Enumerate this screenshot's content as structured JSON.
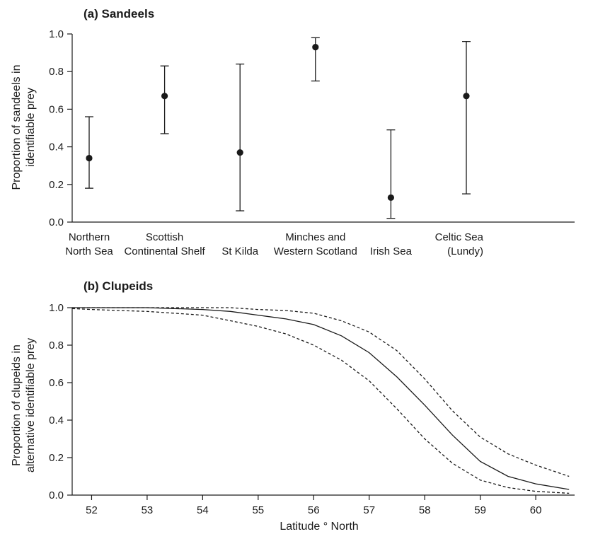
{
  "chart_data": [
    {
      "type": "scatter",
      "panel_title": "(a) Sandeels",
      "ylabel_lines": [
        "Proportion of sandeels in",
        "identifiable prey"
      ],
      "xlabel": "",
      "ylim": [
        0,
        1.0
      ],
      "yticks": [
        "0.0",
        "0.2",
        "0.4",
        "0.6",
        "0.8",
        "1.0"
      ],
      "categories": [
        [
          "Northern",
          "North Sea"
        ],
        [
          "Scottish",
          "Continental Shelf"
        ],
        [
          "St Kilda"
        ],
        [
          "Minches and",
          "Western Scotland"
        ],
        [
          "Irish Sea"
        ],
        [
          "Celtic Sea",
          "(Lundy)"
        ]
      ],
      "points": [
        {
          "y": 0.34,
          "lower": 0.18,
          "upper": 0.56
        },
        {
          "y": 0.67,
          "lower": 0.47,
          "upper": 0.83
        },
        {
          "y": 0.37,
          "lower": 0.06,
          "upper": 0.84
        },
        {
          "y": 0.93,
          "lower": 0.75,
          "upper": 0.98
        },
        {
          "y": 0.13,
          "lower": 0.02,
          "upper": 0.49
        },
        {
          "y": 0.67,
          "lower": 0.15,
          "upper": 0.96
        }
      ],
      "grid": false,
      "legend": "none"
    },
    {
      "type": "line",
      "panel_title": "(b) Clupeids",
      "ylabel_lines": [
        "Proportion of clupeids in",
        "alternative identifiable prey"
      ],
      "xlabel": "Latitude ° North",
      "xlim": [
        51.65,
        60.7
      ],
      "ylim": [
        0,
        1.0
      ],
      "xticks": [
        "52",
        "53",
        "54",
        "55",
        "56",
        "57",
        "58",
        "59",
        "60"
      ],
      "yticks": [
        "0.0",
        "0.2",
        "0.4",
        "0.6",
        "0.8",
        "1.0"
      ],
      "series": [
        {
          "style": "solid",
          "x": [
            51.65,
            52,
            52.5,
            53,
            53.5,
            54,
            54.5,
            55,
            55.5,
            56,
            56.5,
            57,
            57.5,
            58,
            58.5,
            59,
            59.5,
            60,
            60.6
          ],
          "y": [
            1.0,
            1.0,
            1.0,
            1.0,
            0.995,
            0.99,
            0.98,
            0.96,
            0.94,
            0.91,
            0.85,
            0.76,
            0.63,
            0.48,
            0.32,
            0.18,
            0.1,
            0.06,
            0.03
          ]
        },
        {
          "style": "dashed",
          "x": [
            51.65,
            52,
            52.5,
            53,
            53.5,
            54,
            54.5,
            55,
            55.5,
            56,
            56.5,
            57,
            57.5,
            58,
            58.5,
            59,
            59.5,
            60,
            60.6
          ],
          "y": [
            1.0,
            1.0,
            1.0,
            1.0,
            1.0,
            1.0,
            1.0,
            0.99,
            0.985,
            0.97,
            0.93,
            0.87,
            0.77,
            0.62,
            0.45,
            0.31,
            0.22,
            0.16,
            0.1
          ]
        },
        {
          "style": "dashed",
          "x": [
            51.65,
            52,
            52.5,
            53,
            53.5,
            54,
            54.5,
            55,
            55.5,
            56,
            56.5,
            57,
            57.5,
            58,
            58.5,
            59,
            59.5,
            60,
            60.6
          ],
          "y": [
            0.995,
            0.99,
            0.985,
            0.98,
            0.97,
            0.96,
            0.93,
            0.9,
            0.86,
            0.8,
            0.72,
            0.61,
            0.46,
            0.3,
            0.17,
            0.08,
            0.04,
            0.02,
            0.01
          ]
        }
      ],
      "grid": false,
      "legend": "none"
    }
  ]
}
